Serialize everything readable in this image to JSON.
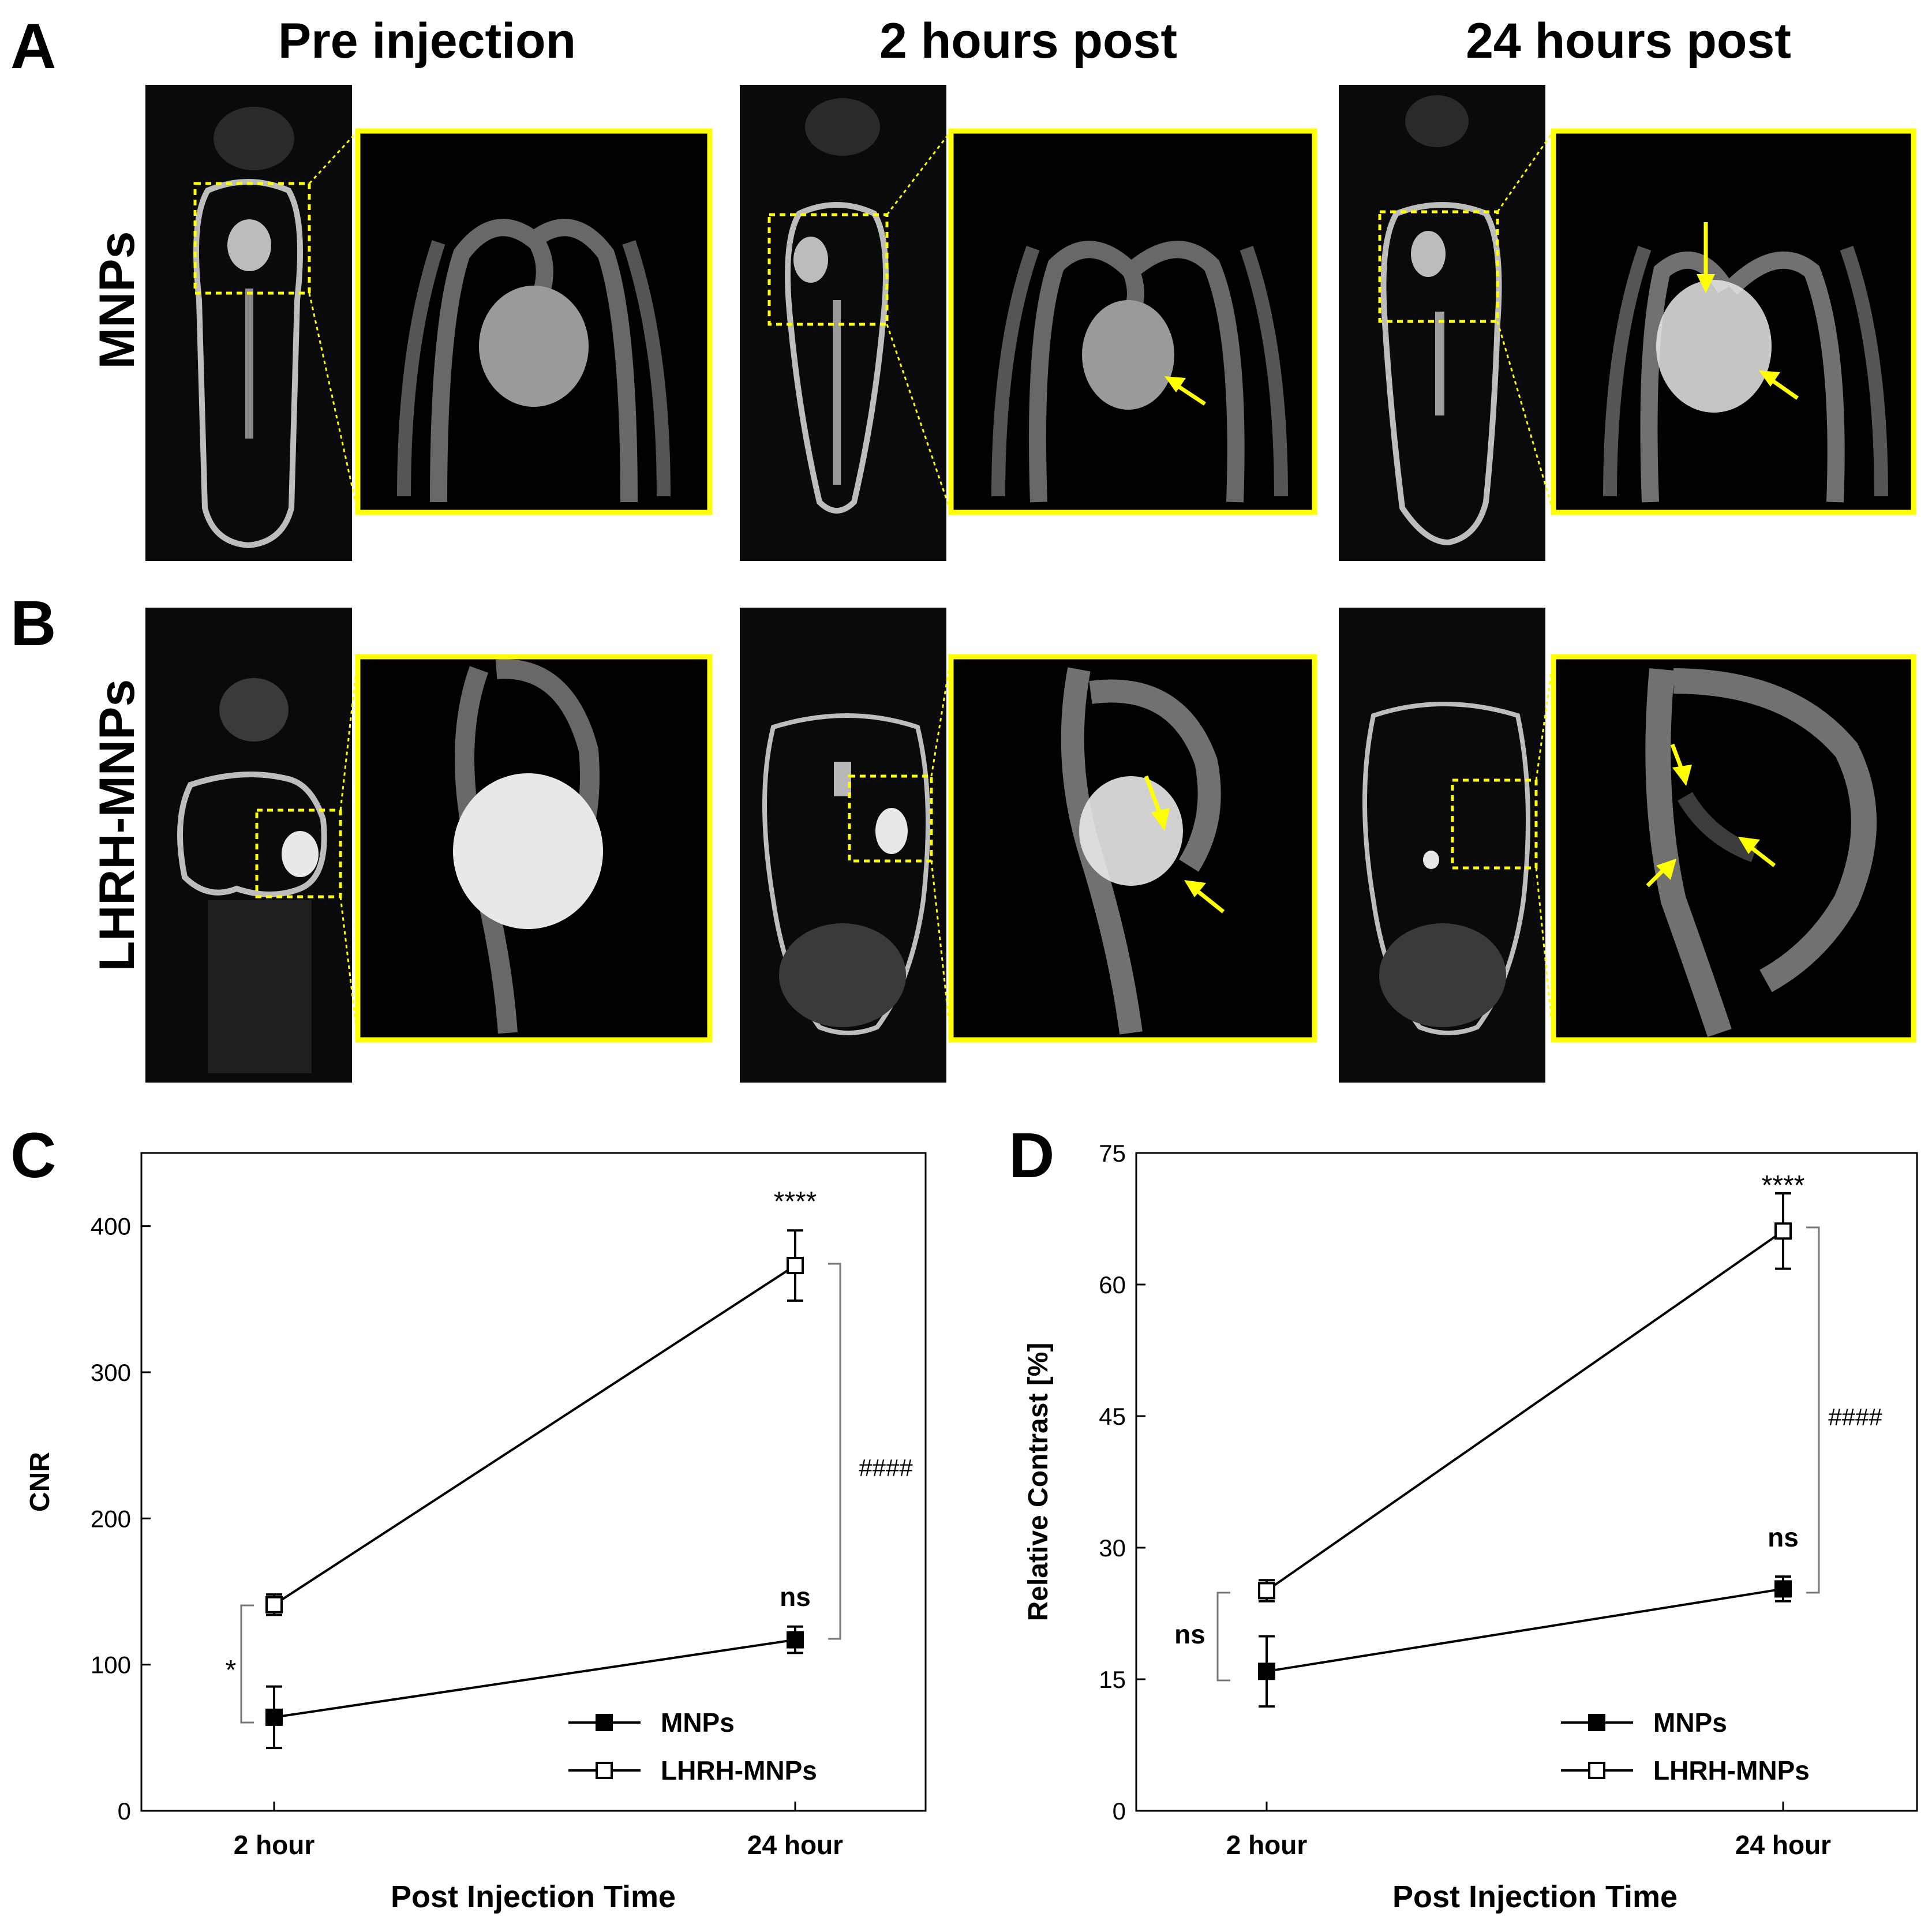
{
  "panel_letters": {
    "a": "A",
    "b": "B",
    "c": "C",
    "d": "D"
  },
  "column_titles": [
    "Pre injection",
    "2 hours post",
    "24 hours post"
  ],
  "row_labels": {
    "a": "MNPs",
    "b": "LHRH-MNPs"
  },
  "colors": {
    "highlight": "#ffff00",
    "background": "#000000"
  },
  "chart_data": [
    {
      "type": "line",
      "panel": "C",
      "title": "",
      "xlabel": "Post Injection Time",
      "ylabel": "CNR",
      "categories": [
        "2 hour",
        "24 hour"
      ],
      "ylim": [
        0,
        450
      ],
      "yticks": [
        0,
        100,
        200,
        300,
        400
      ],
      "legend_position": "bottom-right",
      "series": [
        {
          "name": "MNPs",
          "marker": "filled-square",
          "values": [
            64,
            117
          ],
          "errors": [
            21,
            9
          ]
        },
        {
          "name": "LHRH-MNPs",
          "marker": "open-square",
          "values": [
            141,
            373
          ],
          "errors": [
            7,
            24
          ]
        }
      ],
      "annotations": {
        "top_star": "****",
        "ns_label": "ns",
        "hash_label": "####",
        "left_label": "*"
      }
    },
    {
      "type": "line",
      "panel": "D",
      "title": "",
      "xlabel": "Post Injection Time",
      "ylabel": "Relative Contrast [%]",
      "categories": [
        "2 hour",
        "24 hour"
      ],
      "ylim": [
        0,
        75
      ],
      "yticks": [
        0,
        15,
        30,
        45,
        60,
        75
      ],
      "legend_position": "bottom-right",
      "series": [
        {
          "name": "MNPs",
          "marker": "filled-square",
          "values": [
            15.9,
            25.3
          ],
          "errors": [
            4.0,
            1.4
          ]
        },
        {
          "name": "LHRH-MNPs",
          "marker": "open-square",
          "values": [
            25.1,
            66.1
          ],
          "errors": [
            1.2,
            4.3
          ]
        }
      ],
      "annotations": {
        "top_star": "****",
        "ns_label": "ns",
        "hash_label": "####",
        "left_label": "ns"
      }
    }
  ]
}
